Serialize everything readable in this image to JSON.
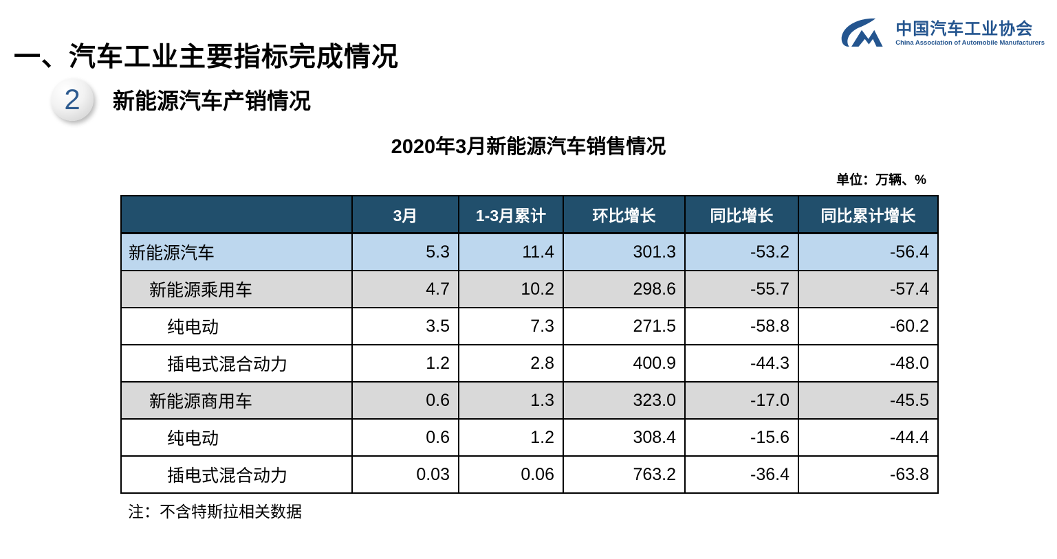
{
  "page": {
    "title": "一、汽车工业主要指标完成情况",
    "section_number": "2",
    "section_title": "新能源汽车产销情况",
    "table_title": "2020年3月新能源汽车销售情况",
    "unit_label": "单位：万辆、%",
    "note": "注：不含特斯拉相关数据"
  },
  "logo": {
    "monogram": "CM",
    "name_zh": "中国汽车工业协会",
    "name_en": "China Association of Automobile Manufacturers",
    "color": "#24558F"
  },
  "colors": {
    "header_bg": "#214F6C",
    "header_text": "#FFFFFF",
    "highlight_row_bg": "#BDD7EE",
    "subtotal_row_bg": "#D9D9D9",
    "border": "#000000",
    "logo_blue": "#24558F"
  },
  "chart_data": {
    "type": "table",
    "title": "2020年3月新能源汽车销售情况",
    "unit": "万辆、%",
    "columns": [
      "",
      "3月",
      "1-3月累计",
      "环比增长",
      "同比增长",
      "同比累计增长"
    ],
    "rows": [
      {
        "label": "新能源汽车",
        "indent": 0,
        "style": "highlight",
        "values": [
          "5.3",
          "11.4",
          "301.3",
          "-53.2",
          "-56.4"
        ]
      },
      {
        "label": "新能源乘用车",
        "indent": 1,
        "style": "subtotal",
        "values": [
          "4.7",
          "10.2",
          "298.6",
          "-55.7",
          "-57.4"
        ]
      },
      {
        "label": "纯电动",
        "indent": 2,
        "style": "plain",
        "values": [
          "3.5",
          "7.3",
          "271.5",
          "-58.8",
          "-60.2"
        ]
      },
      {
        "label": "插电式混合动力",
        "indent": 2,
        "style": "plain",
        "values": [
          "1.2",
          "2.8",
          "400.9",
          "-44.3",
          "-48.0"
        ]
      },
      {
        "label": "新能源商用车",
        "indent": 1,
        "style": "subtotal",
        "values": [
          "0.6",
          "1.3",
          "323.0",
          "-17.0",
          "-45.5"
        ]
      },
      {
        "label": "纯电动",
        "indent": 2,
        "style": "plain",
        "values": [
          "0.6",
          "1.2",
          "308.4",
          "-15.6",
          "-44.4"
        ]
      },
      {
        "label": "插电式混合动力",
        "indent": 2,
        "style": "plain",
        "values": [
          "0.03",
          "0.06",
          "763.2",
          "-36.4",
          "-63.8"
        ]
      }
    ]
  }
}
